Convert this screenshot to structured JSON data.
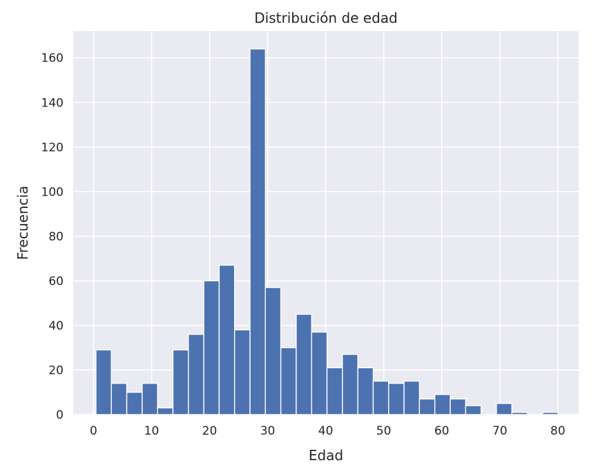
{
  "chart_data": {
    "type": "bar",
    "title": "Distribución de edad",
    "xlabel": "Edad",
    "ylabel": "Frecuencia",
    "xlim": [
      -3.5,
      83.6
    ],
    "ylim": [
      0,
      172
    ],
    "grid": true,
    "x_ticks": [
      0,
      10,
      20,
      30,
      40,
      50,
      60,
      70,
      80
    ],
    "y_ticks": [
      0,
      20,
      40,
      60,
      80,
      100,
      120,
      140,
      160
    ],
    "bin_edges": [
      0.42,
      3.074,
      5.728,
      8.382,
      11.036,
      13.69,
      16.344,
      18.998,
      21.652,
      24.306,
      26.96,
      29.614,
      32.268,
      34.922,
      37.576,
      40.23,
      42.884,
      45.538,
      48.192,
      50.846,
      53.5,
      56.154,
      58.808,
      61.462,
      64.116,
      66.77,
      69.424,
      72.078,
      74.732,
      77.386,
      80.04
    ],
    "values": [
      29,
      14,
      10,
      14,
      3,
      29,
      36,
      60,
      67,
      38,
      164,
      57,
      30,
      45,
      37,
      21,
      27,
      21,
      15,
      14,
      15,
      7,
      9,
      7,
      4,
      0,
      5,
      1,
      0,
      1
    ],
    "colors": {
      "bar": "#4c72b0",
      "plot_background": "#eaeaf2",
      "grid": "#ffffff",
      "text": "#262626"
    }
  }
}
